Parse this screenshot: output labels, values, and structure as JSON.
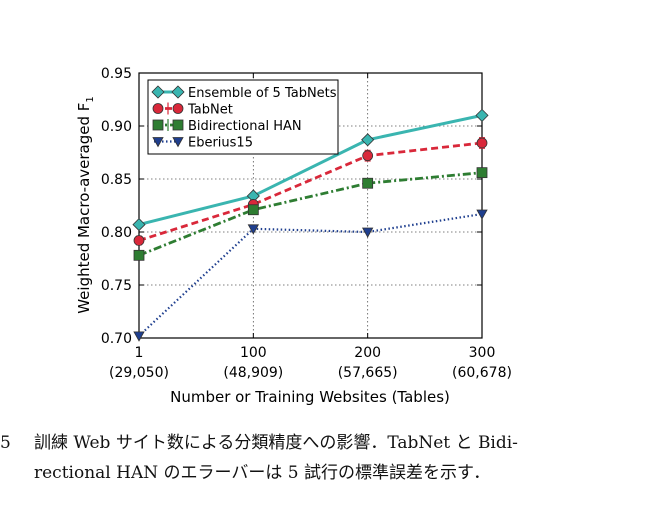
{
  "chart_data": {
    "type": "line",
    "xlabel": "Number or Training Websites (Tables)",
    "ylabel": "Weighted Macro-averaged F",
    "ylabel_subscript": "1",
    "ylim": [
      0.7,
      0.95
    ],
    "yticks": [
      "0.70",
      "0.75",
      "0.80",
      "0.85",
      "0.90",
      "0.95"
    ],
    "categories": [
      "1",
      "100",
      "200",
      "300"
    ],
    "category_sublabels": [
      "(29,050)",
      "(48,909)",
      "(57,665)",
      "(60,678)"
    ],
    "grid": true,
    "legend_position": "top-left",
    "series": [
      {
        "name": "Ensemble of 5 TabNets",
        "values": [
          0.807,
          0.834,
          0.887,
          0.91
        ],
        "color": "#3ab5b0",
        "marker": "diamond",
        "dash": "solid",
        "error": null
      },
      {
        "name": "TabNet",
        "values": [
          0.792,
          0.826,
          0.872,
          0.884
        ],
        "color": "#d9283a",
        "marker": "circle",
        "dash": "dashed",
        "error": [
          0.004,
          0.004,
          0.005,
          0.005
        ]
      },
      {
        "name": "Bidirectional HAN",
        "values": [
          0.778,
          0.821,
          0.846,
          0.856
        ],
        "color": "#2e7d32",
        "marker": "square",
        "dash": "dashdot",
        "error": [
          0.004,
          0.004,
          0.003,
          0.003
        ]
      },
      {
        "name": "Eberius15",
        "values": [
          0.702,
          0.803,
          0.8,
          0.817
        ],
        "color": "#1f3f8f",
        "marker": "triangle-down",
        "dash": "dotted",
        "error": null
      }
    ]
  },
  "caption": {
    "number": "5",
    "line1": "訓練 Web サイト数による分類精度への影響．TabNet と Bidi-",
    "line2": "rectional HAN のエラーバーは 5 試行の標準誤差を示す．"
  }
}
